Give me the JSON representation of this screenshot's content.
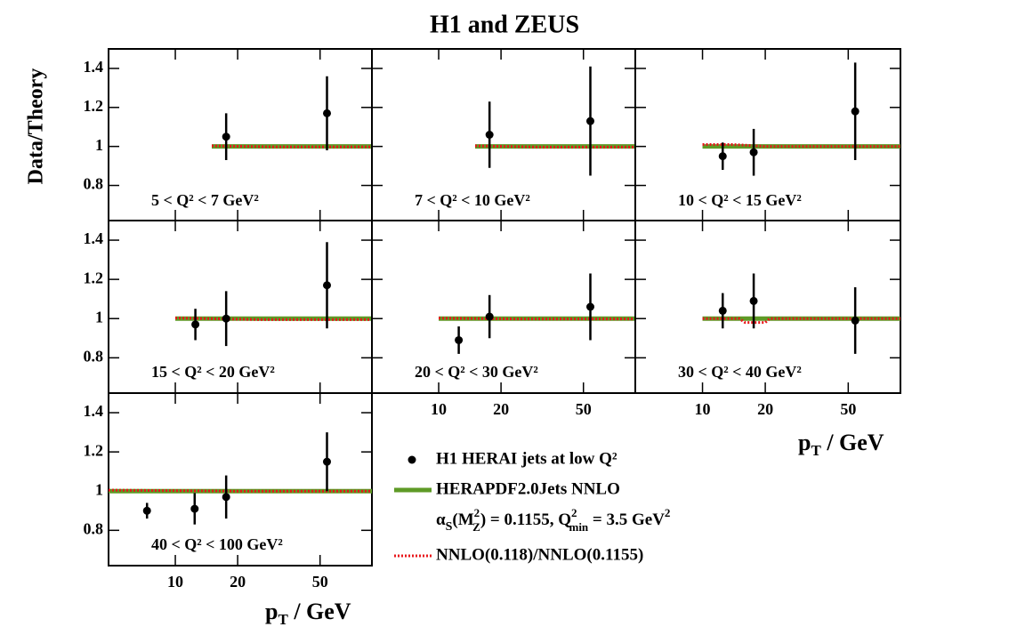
{
  "figure": {
    "title": "H1 and ZEUS",
    "y_label": "Data/Theory",
    "x_label": [
      "p",
      "T",
      " / GeV"
    ],
    "xscale": "log",
    "xlim": [
      4.76,
      89
    ],
    "ylim": [
      0.62,
      1.5
    ],
    "xticks": [
      10,
      20,
      50
    ],
    "yticks": [
      0.8,
      1,
      1.2,
      1.4
    ],
    "legend": [
      {
        "name": "H1 HERAI jets at low Q²",
        "color": "#000000"
      },
      {
        "name": "HERAPDF2.0Jets NNLO",
        "color": "#5e9a26",
        "details": [
          "α",
          "S",
          "(M",
          "2",
          "Z",
          ") = 0.1155, Q",
          "2",
          "min",
          " = 3.5 GeV",
          "2"
        ]
      },
      {
        "name": "NNLO(0.118)/NNLO(0.1155)",
        "color": "#e8161b"
      }
    ]
  },
  "chart_data": [
    {
      "type": "scatter",
      "label": "5 < Q² < 7 GeV²",
      "x": [
        17.6,
        54
      ],
      "values": [
        1.05,
        1.17
      ],
      "errors": [
        0.12,
        0.19
      ],
      "herapdf": {
        "x": [
          15,
          89
        ],
        "values": [
          1,
          1
        ]
      },
      "ratio": {
        "x": [
          15,
          30,
          89
        ],
        "values": [
          1.003,
          0.998,
          0.998
        ]
      }
    },
    {
      "type": "scatter",
      "label": "7 < Q² < 10 GeV²",
      "x": [
        17.6,
        54
      ],
      "values": [
        1.06,
        1.13
      ],
      "errors": [
        0.17,
        0.28
      ],
      "herapdf": {
        "x": [
          15,
          89
        ],
        "values": [
          1,
          1
        ]
      },
      "ratio": {
        "x": [
          15,
          30,
          89
        ],
        "values": [
          1.003,
          0.997,
          0.997
        ]
      }
    },
    {
      "type": "scatter",
      "label": "10 < Q² < 15 GeV²",
      "x": [
        12.5,
        17.6,
        54
      ],
      "values": [
        0.95,
        0.97,
        1.18
      ],
      "errors": [
        0.07,
        0.12,
        0.25
      ],
      "herapdf": {
        "x": [
          10,
          89
        ],
        "values": [
          1,
          1
        ]
      },
      "ratio": {
        "x": [
          10,
          14,
          20,
          89
        ],
        "values": [
          1.01,
          1.01,
          1.0,
          1.0
        ]
      }
    },
    {
      "type": "scatter",
      "label": "15 < Q² < 20 GeV²",
      "x": [
        12.5,
        17.6,
        54
      ],
      "values": [
        0.97,
        1.0,
        1.17
      ],
      "errors": [
        0.08,
        0.14,
        0.22
      ],
      "herapdf": {
        "x": [
          10,
          89
        ],
        "values": [
          1,
          1
        ]
      },
      "ratio": {
        "x": [
          10,
          25,
          89
        ],
        "values": [
          1.003,
          0.995,
          0.995
        ]
      }
    },
    {
      "type": "scatter",
      "label": "20 < Q² < 30 GeV²",
      "x": [
        12.5,
        17.6,
        54
      ],
      "values": [
        0.89,
        1.01,
        1.06
      ],
      "errors": [
        0.07,
        0.11,
        0.17
      ],
      "herapdf": {
        "x": [
          10,
          89
        ],
        "values": [
          1,
          1
        ]
      },
      "ratio": {
        "x": [
          10,
          25,
          89
        ],
        "values": [
          1.002,
          0.998,
          0.998
        ]
      }
    },
    {
      "type": "scatter",
      "label": "30 < Q² < 40 GeV²",
      "x": [
        12.5,
        17.6,
        54
      ],
      "values": [
        1.04,
        1.09,
        0.99
      ],
      "errors": [
        0.09,
        0.14,
        0.17
      ],
      "herapdf": {
        "x": [
          10,
          89
        ],
        "values": [
          1,
          1
        ]
      },
      "ratio": {
        "x": [
          10,
          15,
          16,
          20,
          21,
          89
        ],
        "values": [
          1.0,
          1.0,
          0.98,
          0.98,
          1.0,
          1.0
        ]
      }
    },
    {
      "type": "scatter",
      "label": "40 < Q² < 100 GeV²",
      "x": [
        7.3,
        12.4,
        17.6,
        54
      ],
      "values": [
        0.9,
        0.91,
        0.97,
        1.15
      ],
      "errors": [
        0.04,
        0.08,
        0.11,
        0.15
      ],
      "herapdf": {
        "x": [
          4.76,
          89
        ],
        "values": [
          1,
          1
        ]
      },
      "ratio": {
        "x": [
          4.76,
          20,
          89
        ],
        "values": [
          1.005,
          1.0,
          1.0
        ]
      }
    }
  ]
}
